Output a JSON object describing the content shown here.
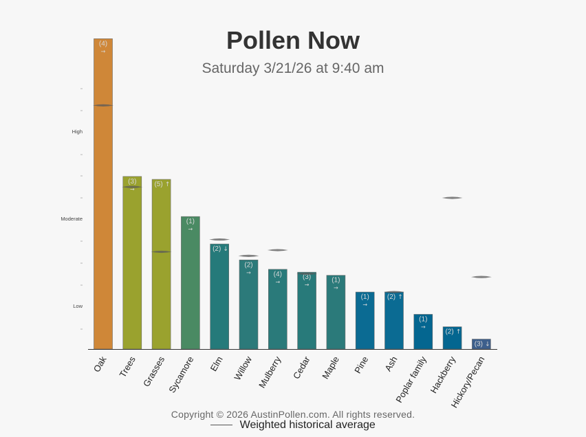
{
  "title": "Pollen Now",
  "subtitle": "Saturday 3/21/26 at 9:40 am",
  "copyright": "Copyright © 2026 AustinPollen.com.  All rights reserved.",
  "legend_label": "Weighted historical average",
  "chart_data": {
    "type": "bar",
    "y_scale": "log",
    "y_tick_labels": [
      "Low",
      "Moderate",
      "High"
    ],
    "categories": [
      "Oak",
      "Trees",
      "Grasses",
      "Sycamore",
      "Elm",
      "Willow",
      "Mulberry",
      "Cedar",
      "Maple",
      "Pine",
      "Ash",
      "Poplar family",
      "Hackberry",
      "Hickory/Pecan"
    ],
    "values": [
      360,
      9.5,
      8.8,
      3.3,
      1.6,
      1.05,
      0.82,
      0.76,
      0.7,
      0.45,
      0.45,
      0.25,
      0.18,
      0.13
    ],
    "historical_average": [
      62,
      7.2,
      1.3,
      null,
      1.8,
      1.17,
      1.36,
      0.73,
      null,
      null,
      0.45,
      null,
      5.4,
      0.67
    ],
    "labels": [
      "(4)",
      "(3)",
      "(5)",
      "(1)",
      "(2)",
      "(2)",
      "(4)",
      "(3)",
      "(1)",
      "(1)",
      "(2)",
      "(1)",
      "(2)",
      "(3)"
    ],
    "trends": [
      "→",
      "→",
      "↑",
      "→",
      "↓",
      "→",
      "→",
      "→",
      "→",
      "→",
      "↑",
      "→",
      "↑",
      "↓"
    ],
    "colors": [
      "#cf8738",
      "#9aa22e",
      "#9aa22e",
      "#4a8a63",
      "#257a7a",
      "#2c7a7a",
      "#2a7a7a",
      "#287a7a",
      "#2b7a7a",
      "#0b6b93",
      "#0b6b93",
      "#046690",
      "#046690",
      "#3d5f8c"
    ],
    "legend": "bottom"
  }
}
